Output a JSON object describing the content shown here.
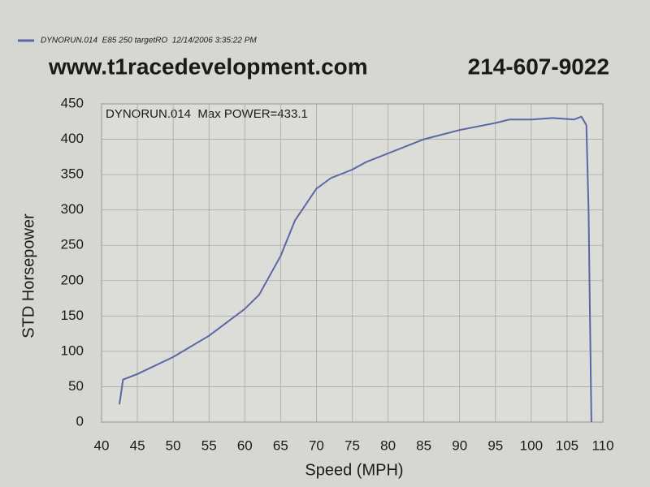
{
  "chart_data": {
    "type": "line",
    "title": "www.t1racedevelopment.com",
    "subtitle": "214-607-9022",
    "annotation": "DYNORUN.014  Max POWER=433.1",
    "x_label": "Speed (MPH)",
    "y_label": "STD Horsepower",
    "x": [
      42.5,
      43,
      45,
      50,
      55,
      60,
      62,
      65,
      67,
      70,
      72,
      75,
      77,
      80,
      85,
      90,
      95,
      97,
      100,
      103,
      106,
      107,
      107.7,
      108,
      108.2,
      108.4
    ],
    "series": [
      {
        "name": "DYNORUN.014  E85 250 targetRO  12/14/2006 3:35:22 PM",
        "color": "#5b66a6",
        "values": [
          25,
          60,
          68,
          92,
          122,
          160,
          180,
          235,
          285,
          330,
          345,
          357,
          368,
          380,
          400,
          413,
          423,
          428,
          428,
          430,
          428,
          432,
          420,
          300,
          150,
          0
        ]
      }
    ],
    "xlim": [
      40,
      110
    ],
    "xticks": [
      40,
      45,
      50,
      55,
      60,
      65,
      70,
      75,
      80,
      85,
      90,
      95,
      100,
      105,
      110
    ],
    "ylim": [
      0,
      450
    ],
    "yticks": [
      0,
      50,
      100,
      150,
      200,
      250,
      300,
      350,
      400,
      450
    ],
    "grid": true
  }
}
